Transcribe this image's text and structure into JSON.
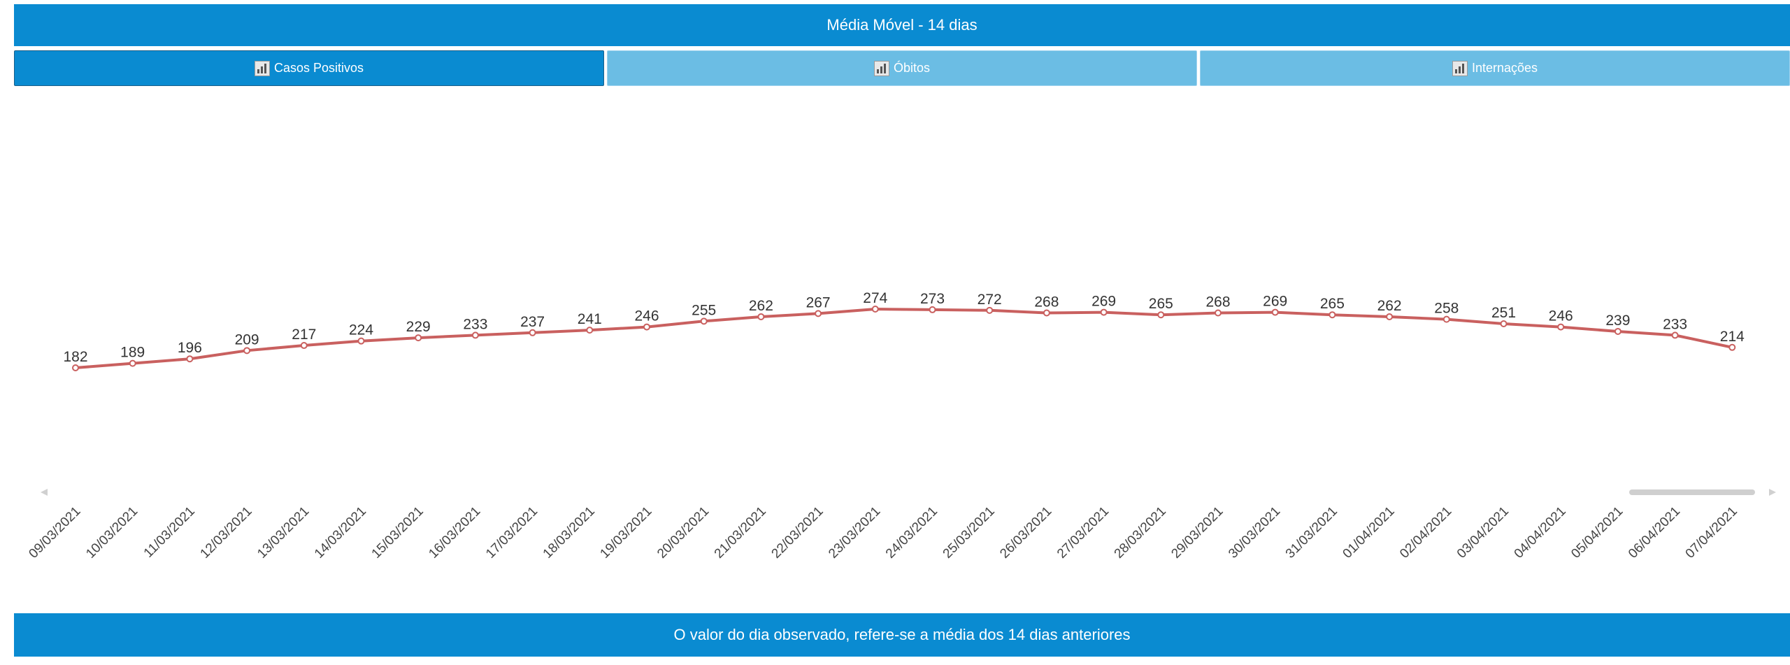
{
  "header": {
    "title": "Média Móvel - 14 dias"
  },
  "tabs": [
    {
      "label": "Casos Positivos",
      "active": true
    },
    {
      "label": "Óbitos",
      "active": false
    },
    {
      "label": "Internações",
      "active": false
    }
  ],
  "footer": {
    "text": "O valor do dia observado, refere-se a média dos 14 dias anteriores"
  },
  "colors": {
    "accent": "#0a8bd1",
    "tab_inactive": "#6bbde4",
    "line": "#c9605f"
  },
  "chart_data": {
    "type": "line",
    "title": "",
    "xlabel": "",
    "ylabel": "",
    "grid": false,
    "x": [
      "09/03/2021",
      "10/03/2021",
      "11/03/2021",
      "12/03/2021",
      "13/03/2021",
      "14/03/2021",
      "15/03/2021",
      "16/03/2021",
      "17/03/2021",
      "18/03/2021",
      "19/03/2021",
      "20/03/2021",
      "21/03/2021",
      "22/03/2021",
      "23/03/2021",
      "24/03/2021",
      "25/03/2021",
      "26/03/2021",
      "27/03/2021",
      "28/03/2021",
      "29/03/2021",
      "30/03/2021",
      "31/03/2021",
      "01/04/2021",
      "02/04/2021",
      "03/04/2021",
      "04/04/2021",
      "05/04/2021",
      "06/04/2021",
      "07/04/2021"
    ],
    "series": [
      {
        "values": [
          182,
          189,
          196,
          209,
          217,
          224,
          229,
          233,
          237,
          241,
          246,
          255,
          262,
          267,
          274,
          273,
          272,
          268,
          269,
          265,
          268,
          269,
          265,
          262,
          258,
          251,
          246,
          239,
          233,
          214
        ]
      }
    ]
  }
}
